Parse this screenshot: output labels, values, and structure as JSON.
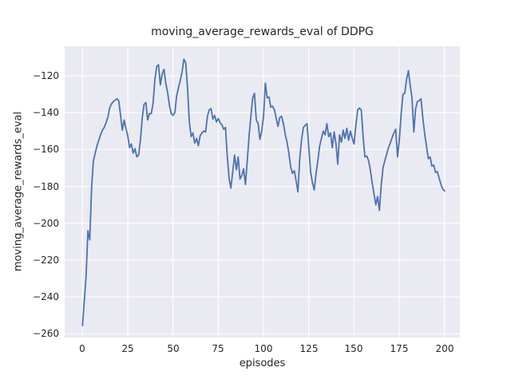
{
  "figure": {
    "background": "#ffffff",
    "title": "moving_average_rewards_eval of DDPG"
  },
  "chart_data": {
    "type": "line",
    "title": "moving_average_rewards_eval of DDPG",
    "xlabel": "episodes",
    "ylabel": "moving_average_rewards_eval",
    "grid": true,
    "legend": false,
    "axes_background": "#eaeaf2",
    "grid_color": "#ffffff",
    "text_color": "#262626",
    "xlim": [
      -9.84,
      208.46
    ],
    "ylim": [
      -262,
      -104
    ],
    "x_ticks": [
      0,
      25,
      50,
      75,
      100,
      125,
      150,
      175,
      200
    ],
    "x_tick_labels": [
      "0",
      "25",
      "50",
      "75",
      "100",
      "125",
      "150",
      "175",
      "200"
    ],
    "y_ticks": [
      -120,
      -140,
      -160,
      -180,
      -200,
      -220,
      -240,
      -260
    ],
    "y_tick_labels": [
      "−120",
      "−140",
      "−160",
      "−180",
      "−200",
      "−220",
      "−240",
      "−260"
    ],
    "x_range": [
      0,
      200
    ],
    "n_points": 201,
    "series": [
      {
        "name": "moving_average_rewards_eval",
        "color": "#4c72b0",
        "x_start": 0,
        "x_step": 1,
        "values": [
          -255.5,
          -242,
          -229,
          -204,
          -209,
          -181,
          -166.5,
          -162,
          -158,
          -155,
          -152,
          -149.5,
          -148,
          -145.5,
          -142.5,
          -137.5,
          -135.3,
          -134,
          -133.3,
          -132.5,
          -133.5,
          -141,
          -149.5,
          -144,
          -148.5,
          -152.5,
          -159,
          -157,
          -162,
          -159.5,
          -164,
          -163,
          -155,
          -143,
          -135.5,
          -134.5,
          -144,
          -140.5,
          -140.5,
          -135,
          -122,
          -115,
          -114,
          -125,
          -119,
          -116.5,
          -124,
          -129,
          -136,
          -140.5,
          -141.5,
          -140,
          -131,
          -126.5,
          -122.5,
          -118,
          -111,
          -113,
          -126,
          -145,
          -153,
          -151,
          -156.5,
          -154,
          -158,
          -152.5,
          -151,
          -150,
          -150.5,
          -142,
          -138.5,
          -137.8,
          -143.5,
          -141.5,
          -145,
          -143.2,
          -145.5,
          -146.5,
          -149,
          -148,
          -164,
          -176,
          -181,
          -172,
          -163,
          -171,
          -164,
          -176,
          -174,
          -170.5,
          -179,
          -166,
          -153,
          -142,
          -132,
          -129.5,
          -144,
          -146,
          -154.5,
          -150,
          -142,
          -124,
          -132,
          -131.5,
          -137,
          -136.5,
          -138.5,
          -143,
          -147.5,
          -142.5,
          -142,
          -146,
          -152,
          -156,
          -162,
          -169.5,
          -173,
          -171.5,
          -177,
          -183,
          -165,
          -154.5,
          -148,
          -147,
          -146,
          -159,
          -172,
          -178,
          -182,
          -173,
          -166,
          -158,
          -154,
          -150,
          -152,
          -146,
          -153,
          -151,
          -159,
          -150.5,
          -157,
          -168,
          -152,
          -156,
          -149.5,
          -154,
          -148.5,
          -155,
          -150,
          -154,
          -157,
          -147,
          -138.5,
          -137.5,
          -138.5,
          -153,
          -164,
          -163.5,
          -166,
          -171,
          -178,
          -184,
          -190,
          -185.5,
          -193,
          -179,
          -170,
          -166,
          -162.5,
          -159,
          -156.5,
          -153.5,
          -151,
          -149,
          -164,
          -155,
          -141,
          -130,
          -129.5,
          -122,
          -117.2,
          -125,
          -132,
          -150.5,
          -138,
          -134,
          -133.5,
          -132.5,
          -143,
          -151.5,
          -158,
          -165,
          -164,
          -169,
          -168.5,
          -172.5,
          -172,
          -175.5,
          -179,
          -181.5,
          -182.5
        ]
      }
    ]
  }
}
